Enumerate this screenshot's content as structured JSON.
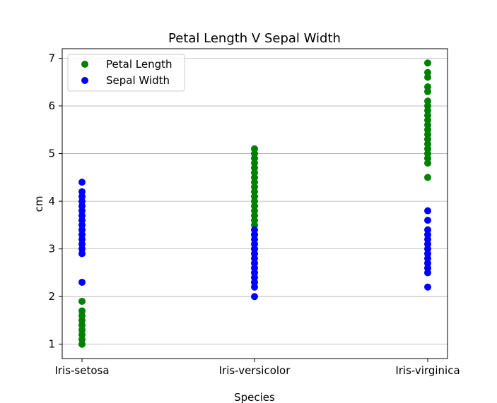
{
  "chart_data": {
    "type": "scatter",
    "title": "Petal Length V Sepal Width",
    "xlabel": "Species",
    "ylabel": "cm",
    "categories": [
      "Iris-setosa",
      "Iris-versicolor",
      "Iris-virginica"
    ],
    "ylim": [
      0.7,
      7.2
    ],
    "yticks": [
      "1",
      "2",
      "3",
      "4",
      "5",
      "6",
      "7"
    ],
    "grid": "horizontal",
    "legend_position": "top-left",
    "series": [
      {
        "name": "Petal Length",
        "color": "#008000",
        "points": [
          {
            "category": "Iris-setosa",
            "values": [
              1.0,
              1.1,
              1.2,
              1.3,
              1.4,
              1.5,
              1.6,
              1.7,
              1.9
            ]
          },
          {
            "category": "Iris-versicolor",
            "values": [
              3.0,
              3.3,
              3.5,
              3.6,
              3.7,
              3.8,
              3.9,
              4.0,
              4.1,
              4.2,
              4.3,
              4.4,
              4.5,
              4.6,
              4.7,
              4.8,
              4.9,
              5.0,
              5.1
            ]
          },
          {
            "category": "Iris-virginica",
            "values": [
              4.5,
              4.8,
              4.9,
              5.0,
              5.1,
              5.2,
              5.3,
              5.4,
              5.5,
              5.6,
              5.7,
              5.8,
              5.9,
              6.0,
              6.1,
              6.3,
              6.4,
              6.6,
              6.7,
              6.9
            ]
          }
        ]
      },
      {
        "name": "Sepal Width",
        "color": "#0000ff",
        "points": [
          {
            "category": "Iris-setosa",
            "values": [
              2.3,
              2.9,
              3.0,
              3.1,
              3.2,
              3.3,
              3.4,
              3.5,
              3.6,
              3.7,
              3.8,
              3.9,
              4.0,
              4.1,
              4.2,
              4.4
            ]
          },
          {
            "category": "Iris-versicolor",
            "values": [
              2.0,
              2.2,
              2.3,
              2.4,
              2.5,
              2.6,
              2.7,
              2.8,
              2.9,
              3.0,
              3.1,
              3.2,
              3.3,
              3.4
            ]
          },
          {
            "category": "Iris-virginica",
            "values": [
              2.2,
              2.5,
              2.6,
              2.7,
              2.8,
              2.9,
              3.0,
              3.1,
              3.2,
              3.3,
              3.4,
              3.6,
              3.8
            ]
          }
        ]
      }
    ]
  }
}
